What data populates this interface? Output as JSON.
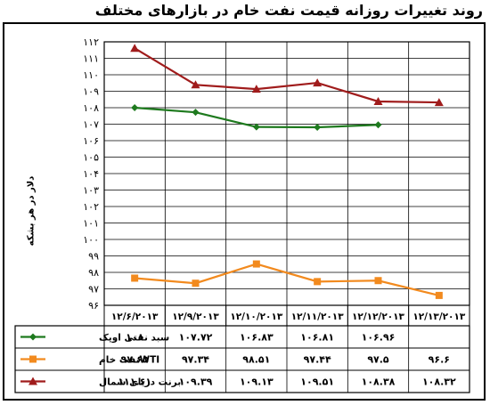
{
  "title": "روند تغییرات روزانه قیمت نفت خام در بازارهای مختلف",
  "chart_data": {
    "type": "line",
    "ylabel": "دلار در هر بشکه",
    "ylim": [
      96,
      112
    ],
    "y_ticks": [
      "۹۶",
      "۹۷",
      "۹۸",
      "۹۹",
      "۱۰۰",
      "۱۰۱",
      "۱۰۲",
      "۱۰۳",
      "۱۰۴",
      "۱۰۵",
      "۱۰۶",
      "۱۰۷",
      "۱۰۸",
      "۱۰۹",
      "۱۱۰",
      "۱۱۱",
      "۱۱۲"
    ],
    "categories": [
      "۱۲/۶/۲۰۱۳",
      "۱۲/۹/۲۰۱۳",
      "۱۲/۱۰/۲۰۱۳",
      "۱۲/۱۱/۲۰۱۳",
      "۱۲/۱۲/۲۰۱۳",
      "۱۲/۱۳/۲۰۱۳"
    ],
    "grid": true,
    "series": [
      {
        "name": "سبد نفتی اوپک",
        "color": "#1e7a1e",
        "marker": "diamond",
        "values": [
          108,
          107.72,
          106.83,
          106.81,
          106.96,
          null
        ],
        "labels": [
          "۱۰۸",
          "۱۰۷.۷۲",
          "۱۰۶.۸۳",
          "۱۰۶.۸۱",
          "۱۰۶.۹۶",
          ""
        ]
      },
      {
        "name": "WTIنفت خام",
        "color": "#f28a1e",
        "marker": "square",
        "values": [
          97.65,
          97.34,
          98.51,
          97.44,
          97.5,
          96.6
        ],
        "labels": [
          "۹۷.۶۵",
          "۹۷.۳۴",
          "۹۸.۵۱",
          "۹۷.۴۴",
          "۹۷.۵",
          "۹۶.۶"
        ]
      },
      {
        "name": "برنت دریای شمال",
        "color": "#a01c1c",
        "marker": "triangle",
        "values": [
          111.61,
          109.39,
          109.13,
          109.51,
          108.38,
          108.32
        ],
        "labels": [
          "۱۱۱.۶۱",
          "۱۰۹.۳۹",
          "۱۰۹.۱۳",
          "۱۰۹.۵۱",
          "۱۰۸.۳۸",
          "۱۰۸.۳۲"
        ]
      }
    ]
  }
}
